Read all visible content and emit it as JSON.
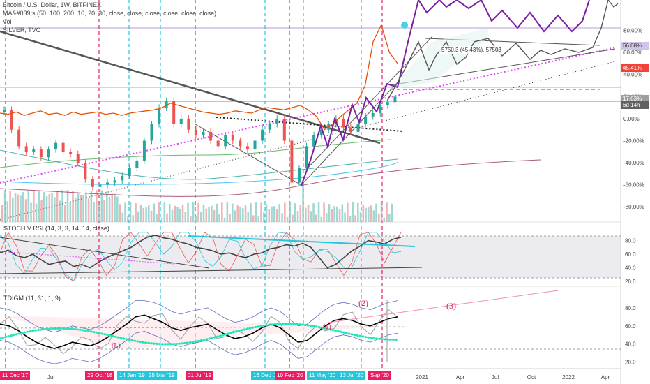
{
  "legend": {
    "title": "Bitcoin / U.S. Dollar, 1W, BITFINEX",
    "ma": "MA&#039;s (50, 100, 200, 10, 20, 30, close, close, close, close, close, close)",
    "vol": "Vol",
    "silver": "SILVER, TVC"
  },
  "stoch_label": "STOCH V RSI (14, 3, 3, 14, 14, close)",
  "tdi_label": "TDIGM (11, 31, 1, 9)",
  "measure_label": "5750.3 (45.43%), 57503",
  "annotations": {
    "a2": "(2)",
    "a3": "(3)",
    "a1": "(1)",
    "aL": "(L)"
  },
  "colors": {
    "up": "#26a69a",
    "down": "#ef5350",
    "silver": "#e65100",
    "projection": "#7b1fa2",
    "magenta": "#e040fb",
    "redline": "#e91e63",
    "tealline": "#26c6da",
    "trend": "#555555",
    "tag_red": "#e91e63",
    "tag_teal": "#26c6da"
  },
  "chart_data": [
    {
      "type": "line",
      "title": "Bitcoin / U.S. Dollar, 1W, BITFINEX",
      "xlabel": "",
      "ylabel": "",
      "x_tick_labels": [
        "Jul",
        "2021",
        "Apr",
        "Jul",
        "Oct",
        "2022",
        "Apr"
      ],
      "y_tick_labels": [
        "80.00%",
        "60.00%",
        "40.00%",
        "20.00%",
        "0.00%",
        "-20.00%",
        "-40.00%",
        "-60.00%",
        "-80.00%"
      ],
      "ylim": [
        -90,
        100
      ],
      "price_labels": [
        {
          "label": "66.08%",
          "value": 66.08
        },
        {
          "label": "45.41%",
          "value": 45.41
        },
        {
          "label": "17.63%",
          "value": 17.63
        },
        {
          "label": "6d 14h",
          "value": 12.0
        }
      ],
      "series": [
        {
          "name": "",
          "values": [
            6,
            8,
            -10,
            -25,
            -30,
            -28,
            -35,
            -28,
            -22,
            -30,
            -32,
            -40,
            -55,
            -62,
            -60,
            -58,
            -56,
            -52,
            -45,
            -38,
            -20,
            -5,
            10,
            16,
            -5,
            0,
            -10,
            -15,
            -12,
            -20,
            -25,
            -15,
            -20,
            -25,
            -28,
            -20,
            -10,
            -5,
            0,
            -20,
            -58,
            -45,
            -25,
            -15,
            -10,
            -5,
            0,
            -8,
            -12,
            -5,
            2,
            5,
            12,
            15,
            20
          ]
        },
        {
          "name": "SILVER, TVC",
          "values": [
            5,
            4,
            6,
            3,
            5,
            7,
            4,
            5,
            3,
            6,
            4,
            5,
            6,
            4,
            5,
            3,
            5,
            6,
            7,
            8,
            10,
            14,
            12,
            10,
            8,
            6,
            5,
            4,
            5,
            7,
            6,
            5,
            8,
            10,
            9,
            8,
            10,
            12,
            8,
            2,
            -10,
            -5,
            2,
            8,
            14,
            30,
            70,
            85,
            60,
            50
          ]
        },
        {
          "name": "",
          "values": [
            20,
            35,
            55,
            75,
            90,
            95,
            100,
            98,
            96,
            99,
            90,
            85,
            82,
            88,
            92,
            100,
            96,
            95,
            98,
            102
          ]
        }
      ],
      "vertical_date_tags": [
        "11 Dec '17",
        "29 Oct '18",
        "14 Jan '19",
        "25 Mar '19",
        "01 Jul '19",
        "16 Dec '19",
        "10 Feb '20",
        "11 May '20",
        "13 Jul '20",
        "Sep '20"
      ],
      "tag_colors": [
        "red",
        "red",
        "teal",
        "teal",
        "red",
        "teal",
        "red",
        "teal",
        "teal",
        "red"
      ]
    },
    {
      "type": "line",
      "title": "STOCH V RSI (14, 3, 3, 14, 14, close)",
      "y_tick_labels": [
        "80.0",
        "60.0",
        "40.0",
        "20.0"
      ],
      "ylim": [
        15,
        95
      ],
      "series": [
        {
          "name": "",
          "values": [
            62,
            66,
            58,
            55,
            60,
            52,
            45,
            48,
            50,
            42,
            45,
            40,
            48,
            55,
            60,
            65,
            70,
            78,
            85,
            88,
            84,
            82,
            78,
            75,
            70,
            68,
            65,
            60,
            62,
            58,
            55,
            60,
            62,
            68,
            70,
            74,
            72,
            76,
            70,
            55,
            40,
            45,
            55,
            65,
            72,
            80,
            78,
            75,
            82,
            85
          ]
        }
      ]
    },
    {
      "type": "line",
      "title": "TDIGM (11, 31, 1, 9)",
      "y_tick_labels": [
        "80.0",
        "60.0",
        "40.0",
        "20.0"
      ],
      "ylim": [
        15,
        90
      ],
      "series": [
        {
          "name": "",
          "values": [
            62,
            60,
            55,
            48,
            42,
            38,
            35,
            38,
            42,
            40,
            38,
            42,
            48,
            55,
            62,
            70,
            72,
            68,
            64,
            58,
            55,
            58,
            60,
            62,
            56,
            50,
            46,
            48,
            52,
            58,
            62,
            58,
            50,
            42,
            44,
            52,
            60,
            66,
            68,
            66,
            62,
            60,
            64,
            68,
            70
          ]
        }
      ]
    }
  ]
}
